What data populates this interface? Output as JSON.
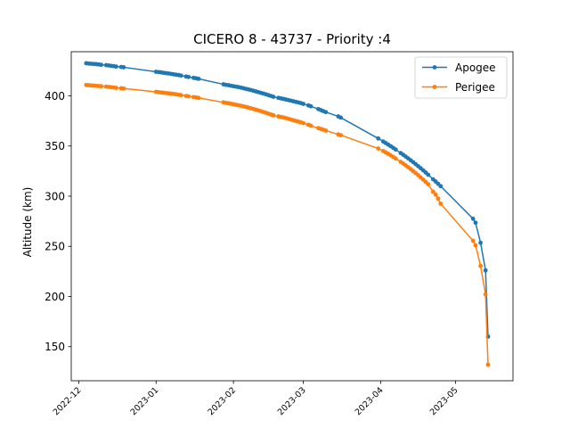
{
  "chart_data": {
    "type": "line",
    "title": "CICERO 8 - 43737 - Priority :4",
    "xlabel": "",
    "ylabel": "Altitude (km)",
    "x_axis_type": "date",
    "xlim": [
      "2022-11-28",
      "2023-05-24"
    ],
    "ylim": [
      116,
      444
    ],
    "x_ticks": [
      "2022-12",
      "2023-01",
      "2023-02",
      "2023-03",
      "2023-04",
      "2023-05"
    ],
    "y_ticks": [
      150,
      200,
      250,
      300,
      350,
      400
    ],
    "grid": false,
    "legend": "top-right",
    "series": [
      {
        "name": "Apogee",
        "color": "#1f77b4",
        "marker": "circle",
        "points": [
          [
            "2022-12-04",
            432.5
          ],
          [
            "2022-12-05",
            432.2
          ],
          [
            "2022-12-06",
            432.0
          ],
          [
            "2022-12-07",
            431.8
          ],
          [
            "2022-12-08",
            431.6
          ],
          [
            "2022-12-09",
            431.3
          ],
          [
            "2022-12-10",
            431.0
          ],
          [
            "2022-12-12",
            430.6
          ],
          [
            "2022-12-13",
            430.3
          ],
          [
            "2022-12-14",
            429.9
          ],
          [
            "2022-12-15",
            429.6
          ],
          [
            "2022-12-16",
            429.2
          ],
          [
            "2022-12-18",
            428.8
          ],
          [
            "2022-12-19",
            428.5
          ],
          [
            "2023-01-01",
            424.0
          ],
          [
            "2023-01-02",
            423.7
          ],
          [
            "2023-01-03",
            423.4
          ],
          [
            "2023-01-04",
            423.0
          ],
          [
            "2023-01-05",
            422.6
          ],
          [
            "2023-01-06",
            422.3
          ],
          [
            "2023-01-07",
            421.9
          ],
          [
            "2023-01-08",
            421.5
          ],
          [
            "2023-01-09",
            421.1
          ],
          [
            "2023-01-10",
            420.7
          ],
          [
            "2023-01-11",
            420.2
          ],
          [
            "2023-01-13",
            419.3
          ],
          [
            "2023-01-14",
            418.8
          ],
          [
            "2023-01-16",
            418.0
          ],
          [
            "2023-01-17",
            417.5
          ],
          [
            "2023-01-18",
            417.0
          ],
          [
            "2023-01-28",
            411.5
          ],
          [
            "2023-01-29",
            411.0
          ],
          [
            "2023-01-30",
            410.6
          ],
          [
            "2023-01-31",
            410.1
          ],
          [
            "2023-02-01",
            409.6
          ],
          [
            "2023-02-02",
            409.2
          ],
          [
            "2023-02-03",
            408.7
          ],
          [
            "2023-02-04",
            408.2
          ],
          [
            "2023-02-05",
            407.6
          ],
          [
            "2023-02-06",
            407.0
          ],
          [
            "2023-02-07",
            406.4
          ],
          [
            "2023-02-08",
            405.8
          ],
          [
            "2023-02-09",
            405.1
          ],
          [
            "2023-02-10",
            404.4
          ],
          [
            "2023-02-11",
            403.7
          ],
          [
            "2023-02-12",
            403.0
          ],
          [
            "2023-02-13",
            402.3
          ],
          [
            "2023-02-14",
            401.5
          ],
          [
            "2023-02-15",
            400.7
          ],
          [
            "2023-02-16",
            399.9
          ],
          [
            "2023-02-17",
            399.1
          ],
          [
            "2023-02-19",
            398.0
          ],
          [
            "2023-02-20",
            397.5
          ],
          [
            "2023-02-21",
            397.0
          ],
          [
            "2023-02-22",
            396.4
          ],
          [
            "2023-02-23",
            395.8
          ],
          [
            "2023-02-24",
            395.2
          ],
          [
            "2023-02-25",
            394.6
          ],
          [
            "2023-02-26",
            394.0
          ],
          [
            "2023-02-27",
            393.4
          ],
          [
            "2023-02-28",
            392.8
          ],
          [
            "2023-03-01",
            392.0
          ],
          [
            "2023-03-03",
            390.5
          ],
          [
            "2023-03-04",
            389.6
          ],
          [
            "2023-03-07",
            386.8
          ],
          [
            "2023-03-08",
            385.8
          ],
          [
            "2023-03-09",
            384.8
          ],
          [
            "2023-03-10",
            383.8
          ],
          [
            "2023-03-15",
            379.5
          ],
          [
            "2023-03-16",
            378.3
          ],
          [
            "2023-03-31",
            357.5
          ],
          [
            "2023-04-02",
            354.5
          ],
          [
            "2023-04-03",
            353.0
          ],
          [
            "2023-04-04",
            351.4
          ],
          [
            "2023-04-05",
            349.8
          ],
          [
            "2023-04-06",
            348.2
          ],
          [
            "2023-04-07",
            346.5
          ],
          [
            "2023-04-09",
            343.0
          ],
          [
            "2023-04-10",
            341.3
          ],
          [
            "2023-04-11",
            339.5
          ],
          [
            "2023-04-12",
            337.7
          ],
          [
            "2023-04-13",
            335.8
          ],
          [
            "2023-04-14",
            333.9
          ],
          [
            "2023-04-15",
            331.9
          ],
          [
            "2023-04-16",
            329.9
          ],
          [
            "2023-04-17",
            327.9
          ],
          [
            "2023-04-18",
            325.8
          ],
          [
            "2023-04-19",
            323.6
          ],
          [
            "2023-04-20",
            321.4
          ],
          [
            "2023-04-22",
            316.8
          ],
          [
            "2023-04-23",
            314.6
          ],
          [
            "2023-04-24",
            312.3
          ],
          [
            "2023-04-25",
            310.0
          ],
          [
            "2023-05-08",
            277.5
          ],
          [
            "2023-05-09",
            273.5
          ],
          [
            "2023-05-11",
            253.5
          ],
          [
            "2023-05-13",
            226.0
          ],
          [
            "2023-05-14",
            160.0
          ]
        ]
      },
      {
        "name": "Perigee",
        "color": "#ff7f0e",
        "marker": "circle",
        "points": [
          [
            "2022-12-04",
            410.8
          ],
          [
            "2022-12-05",
            410.6
          ],
          [
            "2022-12-06",
            410.4
          ],
          [
            "2022-12-07",
            410.2
          ],
          [
            "2022-12-08",
            410.0
          ],
          [
            "2022-12-09",
            409.8
          ],
          [
            "2022-12-10",
            409.6
          ],
          [
            "2022-12-12",
            409.2
          ],
          [
            "2022-12-13",
            408.9
          ],
          [
            "2022-12-14",
            408.6
          ],
          [
            "2022-12-15",
            408.3
          ],
          [
            "2022-12-16",
            408.0
          ],
          [
            "2022-12-18",
            407.6
          ],
          [
            "2022-12-19",
            407.3
          ],
          [
            "2023-01-01",
            404.0
          ],
          [
            "2023-01-02",
            403.7
          ],
          [
            "2023-01-03",
            403.4
          ],
          [
            "2023-01-04",
            403.1
          ],
          [
            "2023-01-05",
            402.8
          ],
          [
            "2023-01-06",
            402.5
          ],
          [
            "2023-01-07",
            402.2
          ],
          [
            "2023-01-08",
            401.9
          ],
          [
            "2023-01-09",
            401.5
          ],
          [
            "2023-01-10",
            401.1
          ],
          [
            "2023-01-11",
            400.7
          ],
          [
            "2023-01-13",
            399.9
          ],
          [
            "2023-01-14",
            399.5
          ],
          [
            "2023-01-16",
            398.8
          ],
          [
            "2023-01-17",
            398.4
          ],
          [
            "2023-01-18",
            398.0
          ],
          [
            "2023-01-28",
            393.5
          ],
          [
            "2023-01-29",
            393.0
          ],
          [
            "2023-01-30",
            392.6
          ],
          [
            "2023-01-31",
            392.1
          ],
          [
            "2023-02-01",
            391.6
          ],
          [
            "2023-02-02",
            391.1
          ],
          [
            "2023-02-03",
            390.6
          ],
          [
            "2023-02-04",
            390.1
          ],
          [
            "2023-02-05",
            389.5
          ],
          [
            "2023-02-06",
            388.9
          ],
          [
            "2023-02-07",
            388.3
          ],
          [
            "2023-02-08",
            387.6
          ],
          [
            "2023-02-09",
            386.9
          ],
          [
            "2023-02-10",
            386.2
          ],
          [
            "2023-02-11",
            385.5
          ],
          [
            "2023-02-12",
            384.7
          ],
          [
            "2023-02-13",
            383.9
          ],
          [
            "2023-02-14",
            383.1
          ],
          [
            "2023-02-15",
            382.2
          ],
          [
            "2023-02-16",
            381.4
          ],
          [
            "2023-02-17",
            380.6
          ],
          [
            "2023-02-19",
            379.5
          ],
          [
            "2023-02-20",
            379.0
          ],
          [
            "2023-02-21",
            378.4
          ],
          [
            "2023-02-22",
            377.8
          ],
          [
            "2023-02-23",
            377.1
          ],
          [
            "2023-02-24",
            376.4
          ],
          [
            "2023-02-25",
            375.7
          ],
          [
            "2023-02-26",
            375.0
          ],
          [
            "2023-02-27",
            374.3
          ],
          [
            "2023-02-28",
            373.6
          ],
          [
            "2023-03-01",
            372.8
          ],
          [
            "2023-03-03",
            371.2
          ],
          [
            "2023-03-04",
            370.3
          ],
          [
            "2023-03-07",
            367.8
          ],
          [
            "2023-03-08",
            367.0
          ],
          [
            "2023-03-09",
            366.2
          ],
          [
            "2023-03-10",
            365.4
          ],
          [
            "2023-03-15",
            361.5
          ],
          [
            "2023-03-16",
            360.8
          ],
          [
            "2023-03-31",
            347.5
          ],
          [
            "2023-04-02",
            345.0
          ],
          [
            "2023-04-03",
            343.6
          ],
          [
            "2023-04-04",
            342.2
          ],
          [
            "2023-04-05",
            340.7
          ],
          [
            "2023-04-06",
            339.1
          ],
          [
            "2023-04-07",
            337.5
          ],
          [
            "2023-04-09",
            334.2
          ],
          [
            "2023-04-10",
            332.5
          ],
          [
            "2023-04-11",
            330.7
          ],
          [
            "2023-04-12",
            328.9
          ],
          [
            "2023-04-13",
            327.0
          ],
          [
            "2023-04-14",
            325.0
          ],
          [
            "2023-04-15",
            323.0
          ],
          [
            "2023-04-16",
            320.9
          ],
          [
            "2023-04-17",
            318.7
          ],
          [
            "2023-04-18",
            316.5
          ],
          [
            "2023-04-19",
            314.2
          ],
          [
            "2023-04-20",
            311.9
          ],
          [
            "2023-04-22",
            304.5
          ],
          [
            "2023-04-23",
            301.5
          ],
          [
            "2023-04-24",
            297.5
          ],
          [
            "2023-04-25",
            292.5
          ],
          [
            "2023-05-08",
            255.5
          ],
          [
            "2023-05-09",
            251.0
          ],
          [
            "2023-05-11",
            230.5
          ],
          [
            "2023-05-13",
            202.0
          ],
          [
            "2023-05-14",
            132.0
          ]
        ]
      }
    ]
  }
}
